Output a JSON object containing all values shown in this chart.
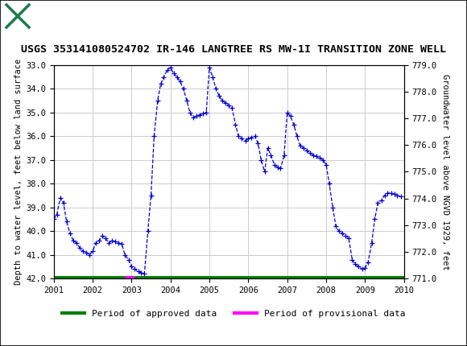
{
  "title": "USGS 353141080524702 IR-146 LANGTREE RS MW-1I TRANSITION ZONE WELL",
  "usgs_header_color": "#1a7a4a",
  "ylabel_left": "Depth to water level, feet below land surface",
  "ylabel_right": "Groundwater level above NGVD 1929, feet",
  "ylim_left": [
    42.0,
    33.0
  ],
  "ylim_right": [
    771.0,
    779.0
  ],
  "xlim": [
    2001.0,
    2010.0
  ],
  "xticks": [
    2001,
    2002,
    2003,
    2004,
    2005,
    2006,
    2007,
    2008,
    2009,
    2010
  ],
  "yticks_left": [
    33.0,
    34.0,
    35.0,
    36.0,
    37.0,
    38.0,
    39.0,
    40.0,
    41.0,
    42.0
  ],
  "yticks_right": [
    771.0,
    772.0,
    773.0,
    774.0,
    775.0,
    776.0,
    777.0,
    778.0,
    779.0
  ],
  "line_color": "#0000cc",
  "line_style": "--",
  "marker": "+",
  "marker_size": 4,
  "approved_color": "#008000",
  "provisional_color": "#ff00ff",
  "background_color": "#ffffff",
  "grid_color": "#cccccc",
  "data_x": [
    2001.0,
    2001.08,
    2001.17,
    2001.25,
    2001.33,
    2001.42,
    2001.5,
    2001.58,
    2001.67,
    2001.75,
    2001.83,
    2001.92,
    2002.0,
    2002.08,
    2002.17,
    2002.25,
    2002.33,
    2002.42,
    2002.5,
    2002.58,
    2002.67,
    2002.75,
    2002.83,
    2002.92,
    2003.0,
    2003.08,
    2003.17,
    2003.25,
    2003.33,
    2003.42,
    2003.5,
    2003.58,
    2003.67,
    2003.75,
    2003.83,
    2003.92,
    2004.0,
    2004.08,
    2004.17,
    2004.25,
    2004.33,
    2004.42,
    2004.5,
    2004.58,
    2004.67,
    2004.75,
    2004.83,
    2004.92,
    2005.0,
    2005.08,
    2005.17,
    2005.25,
    2005.33,
    2005.42,
    2005.5,
    2005.58,
    2005.67,
    2005.75,
    2005.83,
    2005.92,
    2006.0,
    2006.08,
    2006.17,
    2006.25,
    2006.33,
    2006.42,
    2006.5,
    2006.58,
    2006.67,
    2006.75,
    2006.83,
    2006.92,
    2007.0,
    2007.08,
    2007.17,
    2007.25,
    2007.33,
    2007.42,
    2007.5,
    2007.58,
    2007.67,
    2007.75,
    2007.83,
    2007.92,
    2008.0,
    2008.08,
    2008.17,
    2008.25,
    2008.33,
    2008.42,
    2008.5,
    2008.58,
    2008.67,
    2008.75,
    2008.83,
    2008.92,
    2009.0,
    2009.08,
    2009.17,
    2009.25,
    2009.33,
    2009.42,
    2009.5,
    2009.58,
    2009.67,
    2009.75,
    2009.83,
    2009.92
  ],
  "data_y": [
    39.5,
    39.3,
    38.6,
    38.8,
    39.6,
    40.1,
    40.4,
    40.5,
    40.7,
    40.85,
    40.9,
    41.0,
    40.85,
    40.5,
    40.4,
    40.2,
    40.3,
    40.5,
    40.4,
    40.45,
    40.5,
    40.55,
    41.0,
    41.2,
    41.5,
    41.6,
    41.7,
    41.75,
    41.8,
    40.0,
    38.5,
    36.0,
    34.5,
    33.8,
    33.5,
    33.2,
    33.1,
    33.35,
    33.5,
    33.7,
    34.0,
    34.5,
    35.0,
    35.2,
    35.15,
    35.1,
    35.05,
    35.0,
    33.1,
    33.5,
    34.0,
    34.3,
    34.5,
    34.6,
    34.7,
    34.8,
    35.5,
    36.0,
    36.1,
    36.2,
    36.1,
    36.05,
    36.0,
    36.3,
    37.0,
    37.5,
    36.5,
    36.8,
    37.2,
    37.3,
    37.35,
    36.8,
    35.0,
    35.15,
    35.5,
    36.0,
    36.4,
    36.5,
    36.6,
    36.7,
    36.8,
    36.85,
    36.9,
    37.0,
    37.2,
    38.0,
    39.0,
    39.8,
    40.0,
    40.1,
    40.2,
    40.3,
    41.2,
    41.4,
    41.5,
    41.6,
    41.55,
    41.3,
    40.5,
    39.5,
    38.8,
    38.7,
    38.5,
    38.4,
    38.4,
    38.45,
    38.5,
    38.55
  ],
  "approved_x_start": 2001.0,
  "approved_x_end": 2010.0,
  "provisional_x_start": 2002.83,
  "provisional_x_end": 2003.08,
  "bar_y": 42.0,
  "title_fontsize": 9.5,
  "axis_fontsize": 7.5,
  "tick_fontsize": 7.5,
  "legend_fontsize": 8
}
